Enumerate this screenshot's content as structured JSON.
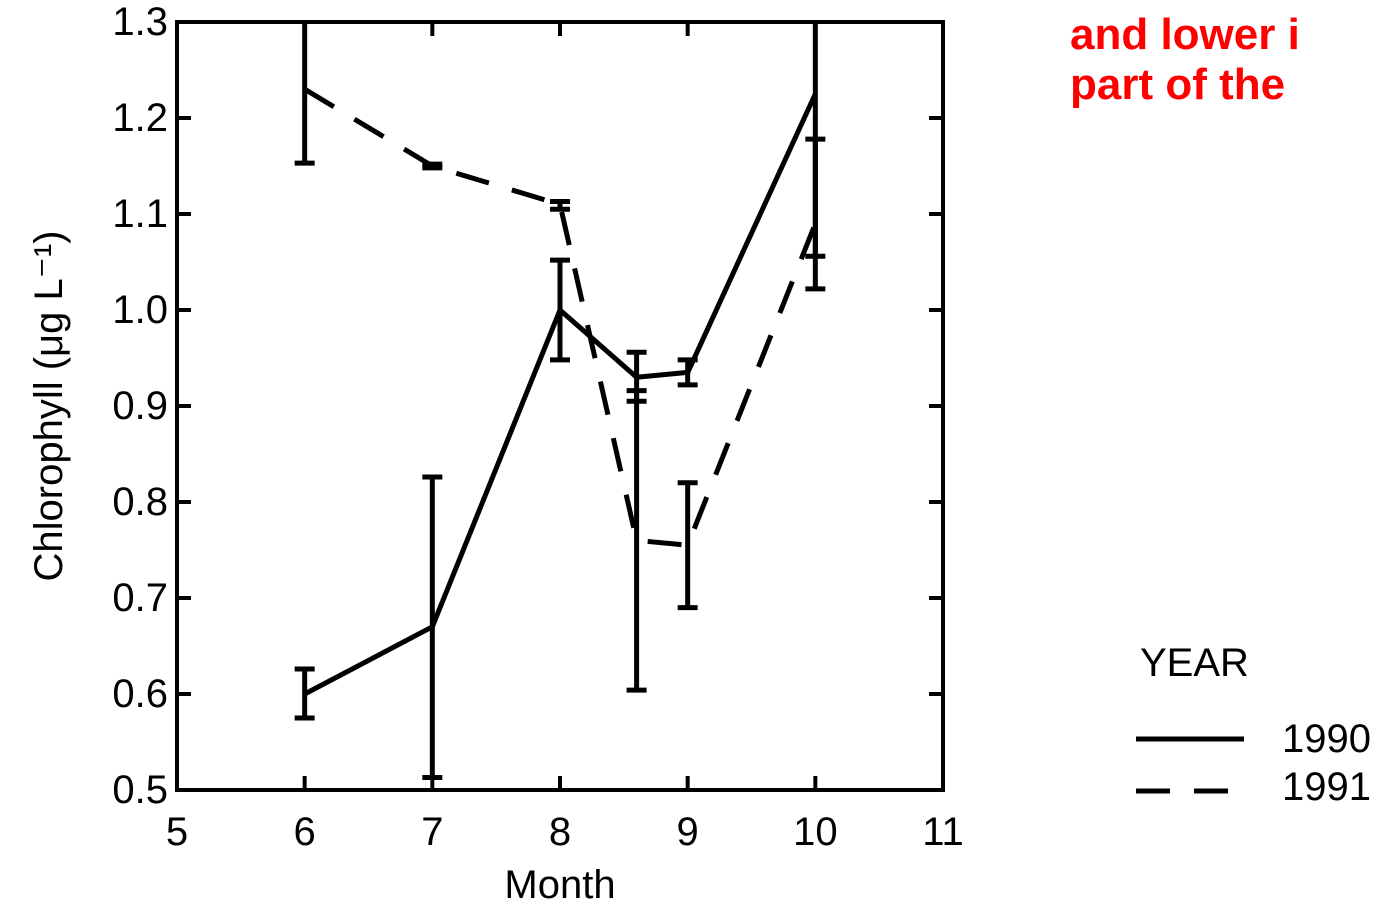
{
  "annotation": {
    "lines": [
      "and lower i",
      "part of the"
    ],
    "color": "#ff0000"
  },
  "chart_data": {
    "type": "line",
    "xlabel": "Month",
    "ylabel": "Chlorophyll (μg L⁻¹)",
    "xlim": [
      5,
      11
    ],
    "ylim": [
      0.5,
      1.3
    ],
    "x_ticks": [
      "5",
      "6",
      "7",
      "8",
      "9",
      "10",
      "11"
    ],
    "y_ticks": [
      "0.5",
      "0.6",
      "0.7",
      "0.8",
      "0.9",
      "1.0",
      "1.1",
      "1.2",
      "1.3"
    ],
    "legend": {
      "title": "YEAR",
      "position": "right"
    },
    "series": [
      {
        "name": "1990",
        "style": "solid",
        "color": "#000000",
        "points": [
          {
            "x": 6,
            "y": 0.6,
            "lo": 0.575,
            "hi": 0.626
          },
          {
            "x": 7,
            "y": 0.67,
            "lo": 0.513,
            "hi": 0.826
          },
          {
            "x": 8,
            "y": 1.0,
            "lo": 0.948,
            "hi": 1.052
          },
          {
            "x": 8.6,
            "y": 0.93,
            "lo": 0.905,
            "hi": 0.956
          },
          {
            "x": 9,
            "y": 0.935,
            "lo": 0.922,
            "hi": 0.948
          },
          {
            "x": 10,
            "y": 1.225,
            "lo": 1.056,
            "hi": 1.3
          }
        ]
      },
      {
        "name": "1991",
        "style": "dashed",
        "color": "#000000",
        "points": [
          {
            "x": 6,
            "y": 1.23,
            "lo": 1.153,
            "hi": 1.3
          },
          {
            "x": 7,
            "y": 1.15,
            "lo": 1.148,
            "hi": 1.152
          },
          {
            "x": 8,
            "y": 1.11,
            "lo": 1.105,
            "hi": 1.113
          },
          {
            "x": 8.6,
            "y": 0.76,
            "lo": 0.604,
            "hi": 0.916
          },
          {
            "x": 9,
            "y": 0.755,
            "lo": 0.69,
            "hi": 0.82
          },
          {
            "x": 10,
            "y": 1.09,
            "lo": 1.022,
            "hi": 1.178
          }
        ]
      }
    ]
  }
}
